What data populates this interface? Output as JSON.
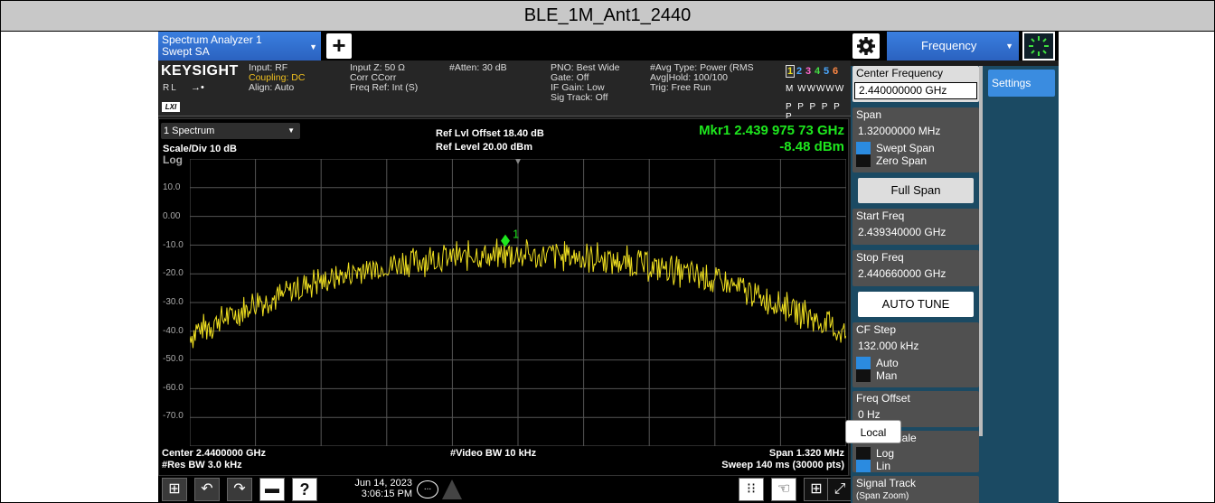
{
  "caption": "BLE_1M_Ant1_2440",
  "window": {
    "tab_line1": "Spectrum Analyzer 1",
    "tab_line2": "Swept SA",
    "add_label": "+",
    "menu_label": "Frequency"
  },
  "info": {
    "brand": "KEYSIGHT",
    "input": "Input: RF",
    "coupling": "Coupling: DC",
    "align": "Align: Auto",
    "rl": "RL",
    "lxi": "LXI",
    "input_z": "Input Z: 50 Ω",
    "corr": "Corr CCorr",
    "freq_ref": "Freq Ref: Int (S)",
    "atten": "#Atten: 30 dB",
    "pno": "PNO: Best Wide",
    "gate": "Gate: Off",
    "if_gain": "IF Gain: Low",
    "sig_track": "Sig Track: Off",
    "avg_type": "#Avg Type: Power (RMS",
    "avg_hold": "Avg|Hold: 100/100",
    "trig": "Trig: Free Run",
    "traces": [
      "1",
      "2",
      "3",
      "4",
      "5",
      "6"
    ],
    "trace_row2": "M WWWWW",
    "trace_row3": "P P P P P P"
  },
  "plot": {
    "window_select": "1 Spectrum",
    "scale": "Scale/Div 10 dB",
    "log": "Log",
    "ref_offset": "Ref Lvl Offset 18.40 dB",
    "ref_level": "Ref Level 20.00 dBm",
    "marker_freq": "Mkr1  2.439 975 73 GHz",
    "marker_amp": "-8.48 dBm",
    "marker_label": "1",
    "yticks": [
      "10.0",
      "0.00",
      "-10.0",
      "-20.0",
      "-30.0",
      "-40.0",
      "-50.0",
      "-60.0",
      "-70.0"
    ],
    "center": "Center 2.4400000 GHz",
    "res_bw": "#Res BW 3.0 kHz",
    "video_bw": "#Video BW 10 kHz",
    "span": "Span 1.320 MHz",
    "sweep": "Sweep 140 ms (30000 pts)"
  },
  "taskbar": {
    "date": "Jun 14, 2023",
    "time": "3:06:15 PM",
    "chat": "..."
  },
  "softkeys": {
    "center_freq": {
      "label": "Center Frequency",
      "value": "2.440000000 GHz"
    },
    "span": {
      "label": "Span",
      "value": "1.32000000 MHz",
      "opt1": "Swept Span",
      "opt2": "Zero Span"
    },
    "full_span": "Full Span",
    "start_freq": {
      "label": "Start Freq",
      "value": "2.439340000 GHz"
    },
    "stop_freq": {
      "label": "Stop Freq",
      "value": "2.440660000 GHz"
    },
    "auto_tune": "AUTO TUNE",
    "cf_step": {
      "label": "CF Step",
      "value": "132.000 kHz",
      "opt1": "Auto",
      "opt2": "Man"
    },
    "freq_offset": {
      "label": "Freq Offset",
      "value": "0 Hz"
    },
    "x_axis": {
      "label": "X Axis Scale",
      "opt1": "Log",
      "opt2": "Lin"
    },
    "signal_track": {
      "label": "Signal Track",
      "sub": "(Span Zoom)"
    },
    "settings_tab": "Settings",
    "local": "Local"
  },
  "colors": {
    "trace": "#f0e020",
    "marker": "#1ee61e",
    "accent": "#2b62c0"
  }
}
